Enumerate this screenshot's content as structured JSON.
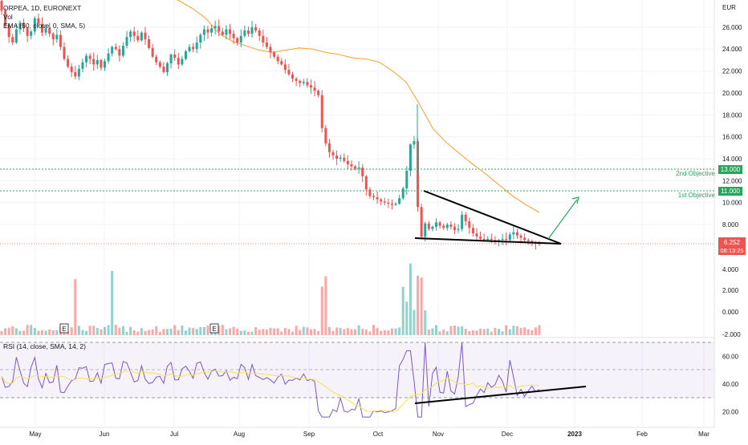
{
  "chart_data": [
    {
      "type": "candlestick",
      "title": "ORPEA, 1D, EURONEXT",
      "currency": "EUR",
      "overlays": [
        "EMA (50, close, 0, SMA, 5)"
      ],
      "volume_label": "Vol",
      "yticks": [
        "26.000",
        "24.000",
        "22.000",
        "20.000",
        "18.000",
        "16.000",
        "14.000",
        "12.000",
        "10.000",
        "8.000"
      ],
      "price_axis_values": [
        26,
        24,
        22,
        20,
        18,
        16,
        14,
        12,
        10,
        8
      ],
      "last_price": "6.252",
      "countdown": "08:13:25",
      "objectives": [
        {
          "label": "2nd Objective",
          "price": "13.000",
          "value": 13.0
        },
        {
          "label": "1st Objective",
          "price": "11.000",
          "value": 11.0
        }
      ],
      "x_months": [
        "May",
        "Jun",
        "Jul",
        "Aug",
        "Sep",
        "Oct",
        "Nov",
        "Dec",
        "2023",
        "Feb",
        "Mar"
      ],
      "closes_approx": [
        27.5,
        26.2,
        25.1,
        24.6,
        25.8,
        26.4,
        25.9,
        25.2,
        25.6,
        26.8,
        26.3,
        25.5,
        25.9,
        25.4,
        24.9,
        25.3,
        24.2,
        23.1,
        22.4,
        21.9,
        21.5,
        22.2,
        22.8,
        23.4,
        23.1,
        22.6,
        23.0,
        22.3,
        22.9,
        23.6,
        24.2,
        24.0,
        23.4,
        24.3,
        25.1,
        25.6,
        25.2,
        24.8,
        25.5,
        24.9,
        24.1,
        23.3,
        22.8,
        22.4,
        21.9,
        22.7,
        23.5,
        23.2,
        22.6,
        23.1,
        23.8,
        24.2,
        24.0,
        24.6,
        25.3,
        25.8,
        25.5,
        25.9,
        26.1,
        25.6,
        25.3,
        25.8,
        25.4,
        25.0,
        24.6,
        25.2,
        25.7,
        25.4,
        26.0,
        25.7,
        25.2,
        24.6,
        24.2,
        23.7,
        23.3,
        22.9,
        22.6,
        22.1,
        21.7,
        21.3,
        21.1,
        20.9,
        21.0,
        20.7,
        20.5,
        20.2,
        19.8,
        16.8,
        15.4,
        14.6,
        14.3,
        14.0,
        14.1,
        13.8,
        13.5,
        13.3,
        13.1,
        13.2,
        12.4,
        11.2,
        10.6,
        10.5,
        10.3,
        10.1,
        10.0,
        9.9,
        9.8,
        9.9,
        10.4,
        11.3,
        12.9,
        15.3,
        15.6,
        9.6,
        6.9,
        8.1,
        7.6,
        7.8,
        8.2,
        7.9,
        7.7,
        8.0,
        7.8,
        7.5,
        7.6,
        8.9,
        8.3,
        7.7,
        7.2,
        6.9,
        6.7,
        6.6,
        6.7,
        6.6,
        6.5,
        6.6,
        6.7,
        6.6,
        7.1,
        7.3,
        7.0,
        6.8,
        6.6,
        6.5,
        6.4,
        6.3,
        6.252
      ],
      "ema50_approx": [
        29.5,
        29.0,
        28.4,
        27.7,
        26.8,
        25.4,
        24.7,
        24.3,
        23.9,
        23.7,
        23.9,
        24.1,
        24.0,
        23.7,
        23.5,
        23.2,
        23.1,
        22.8,
        22.0,
        21.0,
        19.0,
        16.8,
        15.5,
        14.5,
        13.5,
        12.6,
        11.6,
        10.6,
        9.8,
        9.1
      ],
      "volume_axis": [
        "4.000",
        "2.000",
        "0.000",
        "-2.000"
      ],
      "events": [
        "E",
        "E"
      ]
    },
    {
      "type": "line",
      "title": "RSI (14, close, SMA, 14, 2)",
      "yticks": [
        "60.00",
        "40.00",
        "20.00"
      ],
      "ylim": [
        15,
        72
      ],
      "band": [
        30,
        70
      ],
      "mid": 50
    }
  ]
}
